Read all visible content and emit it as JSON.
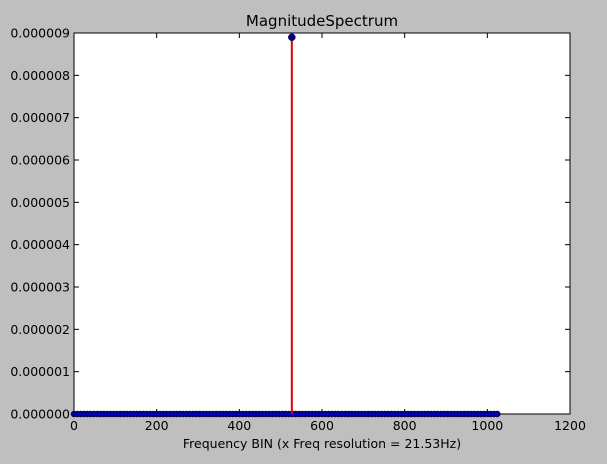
{
  "chart_data": {
    "type": "stem",
    "title": "MagnitudeSpectrum",
    "xlabel": "Frequency BIN (x Freq resolution = 21.53Hz)",
    "ylabel": "",
    "xlim": [
      0,
      1200
    ],
    "ylim": [
      0,
      9e-06
    ],
    "x_ticks": [
      0,
      200,
      400,
      600,
      800,
      1000,
      1200
    ],
    "x_tick_labels": [
      "0",
      "200",
      "400",
      "600",
      "800",
      "1000",
      "1200"
    ],
    "y_ticks": [
      0,
      1e-06,
      2e-06,
      3e-06,
      4e-06,
      5e-06,
      6e-06,
      7e-06,
      8e-06,
      9e-06
    ],
    "y_tick_labels": [
      "0.000000",
      "0.000001",
      "0.000002",
      "0.000003",
      "0.000004",
      "0.000005",
      "0.000006",
      "0.000007",
      "0.000008",
      "0.000009"
    ],
    "grid": false,
    "baseline_range": [
      0,
      1024
    ],
    "marker_step": 8,
    "peak": {
      "x": 527,
      "y": 8.9e-06
    },
    "colors": {
      "stem": "#e00000",
      "baseline": "#0000cc",
      "marker": "#00008b",
      "background": "#bfbfbf",
      "plot_area": "#ffffff"
    }
  }
}
